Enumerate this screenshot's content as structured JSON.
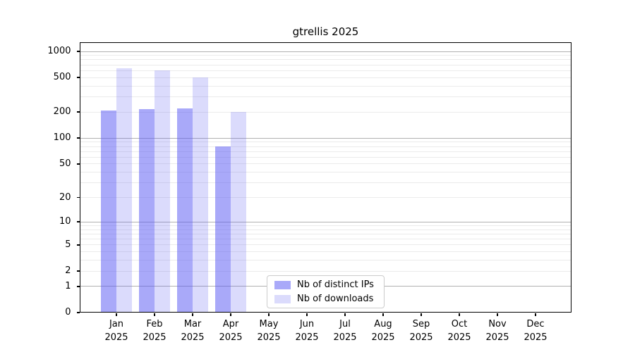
{
  "title": "gtrellis 2025",
  "legend": {
    "items": [
      {
        "key": "ips",
        "label": "Nb of distinct IPs"
      },
      {
        "key": "downloads",
        "label": "Nb of downloads"
      }
    ]
  },
  "colors": {
    "ips": "rgba(90,90,243,0.52)",
    "downloads": "rgba(90,90,243,0.22)",
    "ips_hex": "#a9a9f6",
    "downloads_hex": "#dcdcfa",
    "grid_major": "#b0b0b0",
    "grid_minor": "#ebebeb",
    "axis": "#000000"
  },
  "months": [
    {
      "month": "Jan",
      "year": "2025"
    },
    {
      "month": "Feb",
      "year": "2025"
    },
    {
      "month": "Mar",
      "year": "2025"
    },
    {
      "month": "Apr",
      "year": "2025"
    },
    {
      "month": "May",
      "year": "2025"
    },
    {
      "month": "Jun",
      "year": "2025"
    },
    {
      "month": "Jul",
      "year": "2025"
    },
    {
      "month": "Aug",
      "year": "2025"
    },
    {
      "month": "Sep",
      "year": "2025"
    },
    {
      "month": "Oct",
      "year": "2025"
    },
    {
      "month": "Nov",
      "year": "2025"
    },
    {
      "month": "Dec",
      "year": "2025"
    }
  ],
  "chart_data": {
    "type": "bar",
    "title": "gtrellis 2025",
    "categories": [
      "Jan 2025",
      "Feb 2025",
      "Mar 2025",
      "Apr 2025",
      "May 2025",
      "Jun 2025",
      "Jul 2025",
      "Aug 2025",
      "Sep 2025",
      "Oct 2025",
      "Nov 2025",
      "Dec 2025"
    ],
    "series": [
      {
        "name": "Nb of distinct IPs",
        "values": [
          210,
          218,
          220,
          80,
          null,
          null,
          null,
          null,
          null,
          null,
          null,
          null
        ]
      },
      {
        "name": "Nb of downloads",
        "values": [
          640,
          600,
          500,
          200,
          null,
          null,
          null,
          null,
          null,
          null,
          null,
          null
        ]
      }
    ],
    "xlabel": "",
    "ylabel": "",
    "y_scale": "log1p",
    "y_ticks": [
      0,
      1,
      2,
      5,
      10,
      20,
      50,
      100,
      200,
      500,
      1000
    ],
    "ylim": [
      0,
      1000
    ],
    "grid": "on",
    "legend_position": "inside lower center"
  }
}
